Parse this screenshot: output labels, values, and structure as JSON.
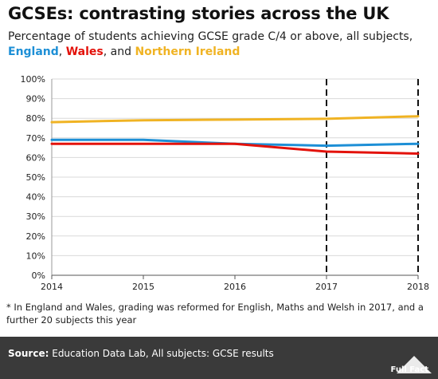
{
  "title": "GCSEs: contrasting stories across the UK",
  "subtitle": "Percentage of students achieving GCSE grade C/4 or above, all subjects,",
  "legend_line": {
    "names": [
      "England",
      "Wales",
      "Northern Ireland"
    ],
    "sep1": ", ",
    "sep2": ", and "
  },
  "footnote": "* In England and Wales, grading was reformed for English, Maths and Welsh in 2017, and a further 20 subjects this year",
  "footer": {
    "source_label": "Source:",
    "source_text": "Education Data Lab, All subjects: GCSE results",
    "logo_text": "Full Fact"
  },
  "colors": {
    "England": "#1d8fd6",
    "Wales": "#e3120b",
    "Northern Ireland": "#f0b323",
    "gridline": "#d9d9d9",
    "footer_bg": "#3a3a3a"
  },
  "chart_data": {
    "type": "line",
    "x": [
      2014,
      2015,
      2016,
      2017,
      2018
    ],
    "series": [
      {
        "name": "England",
        "values": [
          69,
          69,
          67,
          66,
          67
        ]
      },
      {
        "name": "Wales",
        "values": [
          67,
          67,
          67,
          63,
          62
        ]
      },
      {
        "name": "Northern Ireland",
        "values": [
          78,
          79,
          79.3,
          79.7,
          81
        ]
      }
    ],
    "ylim": [
      0,
      100
    ],
    "yticks": [
      0,
      10,
      20,
      30,
      40,
      50,
      60,
      70,
      80,
      90,
      100
    ],
    "ytick_labels": [
      "0%",
      "10%",
      "20%",
      "30%",
      "40%",
      "50%",
      "60%",
      "70%",
      "80%",
      "90%",
      "100%"
    ],
    "xtick_labels": [
      "2014",
      "2015",
      "2016",
      "2017",
      "2018"
    ],
    "xlim": [
      2014,
      2018
    ],
    "reference_lines_x": [
      2017,
      2018
    ],
    "grid": true
  }
}
